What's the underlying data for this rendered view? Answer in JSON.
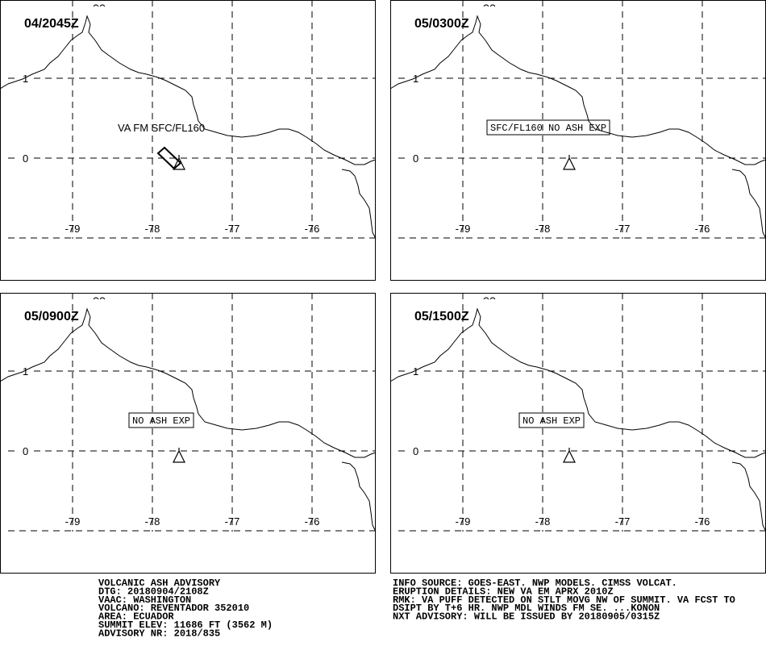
{
  "panels": [
    {
      "time": "04/2045Z",
      "annotation": "VA FM SFC/FL160",
      "boxed": false,
      "ash_area": true
    },
    {
      "time": "05/0300Z",
      "annotation": "SFC/FL160 NO ASH EXP",
      "boxed": true,
      "ash_area": false
    },
    {
      "time": "05/0900Z",
      "annotation": "NO ASH EXP",
      "boxed": true,
      "ash_area": false
    },
    {
      "time": "05/1500Z",
      "annotation": "NO ASH EXP",
      "boxed": true,
      "ash_area": false
    }
  ],
  "lon_ticks": [
    -79,
    -78,
    -77,
    -76
  ],
  "lat_ticks": [
    0,
    1
  ],
  "advisory_left": [
    "VOLCANIC ASH ADVISORY",
    "DTG: 20180904/2108Z",
    "VAAC: WASHINGTON",
    "VOLCANO: REVENTADOR 352010",
    "AREA: ECUADOR",
    "SUMMIT ELEV: 11686 FT (3562 M)",
    "ADVISORY NR: 2018/835"
  ],
  "advisory_right": [
    "INFO SOURCE: GOES-EAST. NWP MODELS. CIMSS VOLCAT.",
    "ERUPTION DETAILS: NEW VA EM APRX 2010Z",
    "RMK: VA PUFF DETECTED ON STLT MOVG NW OF SUMMIT. VA FCST TO",
    "DSIPT BY T+6 HR. NWP MDL WINDS FM SE. ...KONON",
    "NXT ADVISORY: WILL BE ISSUED BY 20180905/0315Z"
  ]
}
